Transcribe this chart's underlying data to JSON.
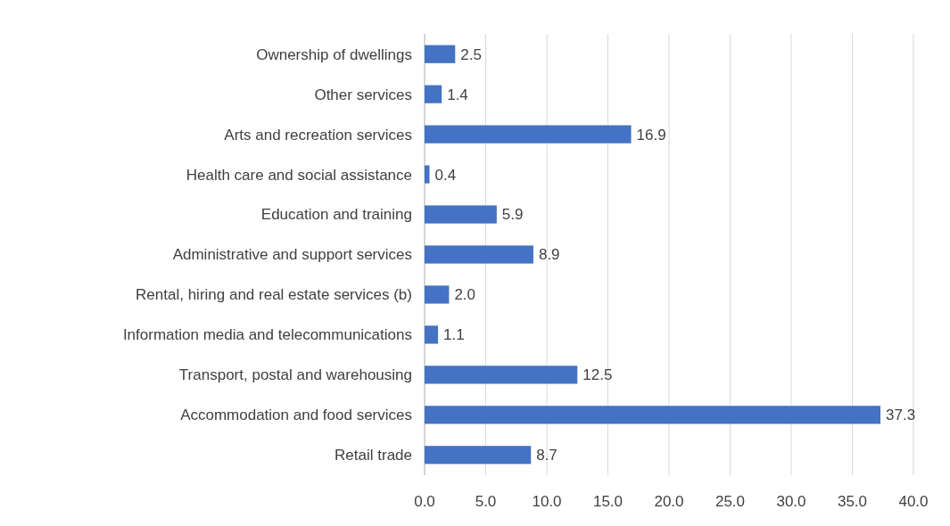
{
  "chart_data": {
    "type": "bar",
    "orientation": "horizontal",
    "categories": [
      "Ownership of dwellings",
      "Other services",
      "Arts and recreation services",
      "Health care and social assistance",
      "Education and training",
      "Administrative and support services",
      "Rental, hiring and real estate services (b)",
      "Information media and telecommunications",
      "Transport, postal and warehousing",
      "Accommodation and food services",
      "Retail trade"
    ],
    "values": [
      2.5,
      1.4,
      16.9,
      0.4,
      5.9,
      8.9,
      2.0,
      1.1,
      12.5,
      37.3,
      8.7
    ],
    "color": "#4472c4",
    "xlim": [
      0,
      40
    ],
    "xticks": [
      {
        "value": 0,
        "label": "0.0"
      },
      {
        "value": 5,
        "label": "5.0"
      },
      {
        "value": 10,
        "label": "10.0"
      },
      {
        "value": 15,
        "label": "15.0"
      },
      {
        "value": 20,
        "label": "20.0"
      },
      {
        "value": 25,
        "label": "25.0"
      },
      {
        "value": 30,
        "label": "30.0"
      },
      {
        "value": 35,
        "label": "35.0"
      },
      {
        "value": 40,
        "label": "40.0"
      }
    ],
    "value_labels": [
      "2.5",
      "1.4",
      "16.9",
      "0.4",
      "5.9",
      "8.9",
      "2.0",
      "1.1",
      "12.5",
      "37.3",
      "8.7"
    ],
    "grid": "x"
  }
}
